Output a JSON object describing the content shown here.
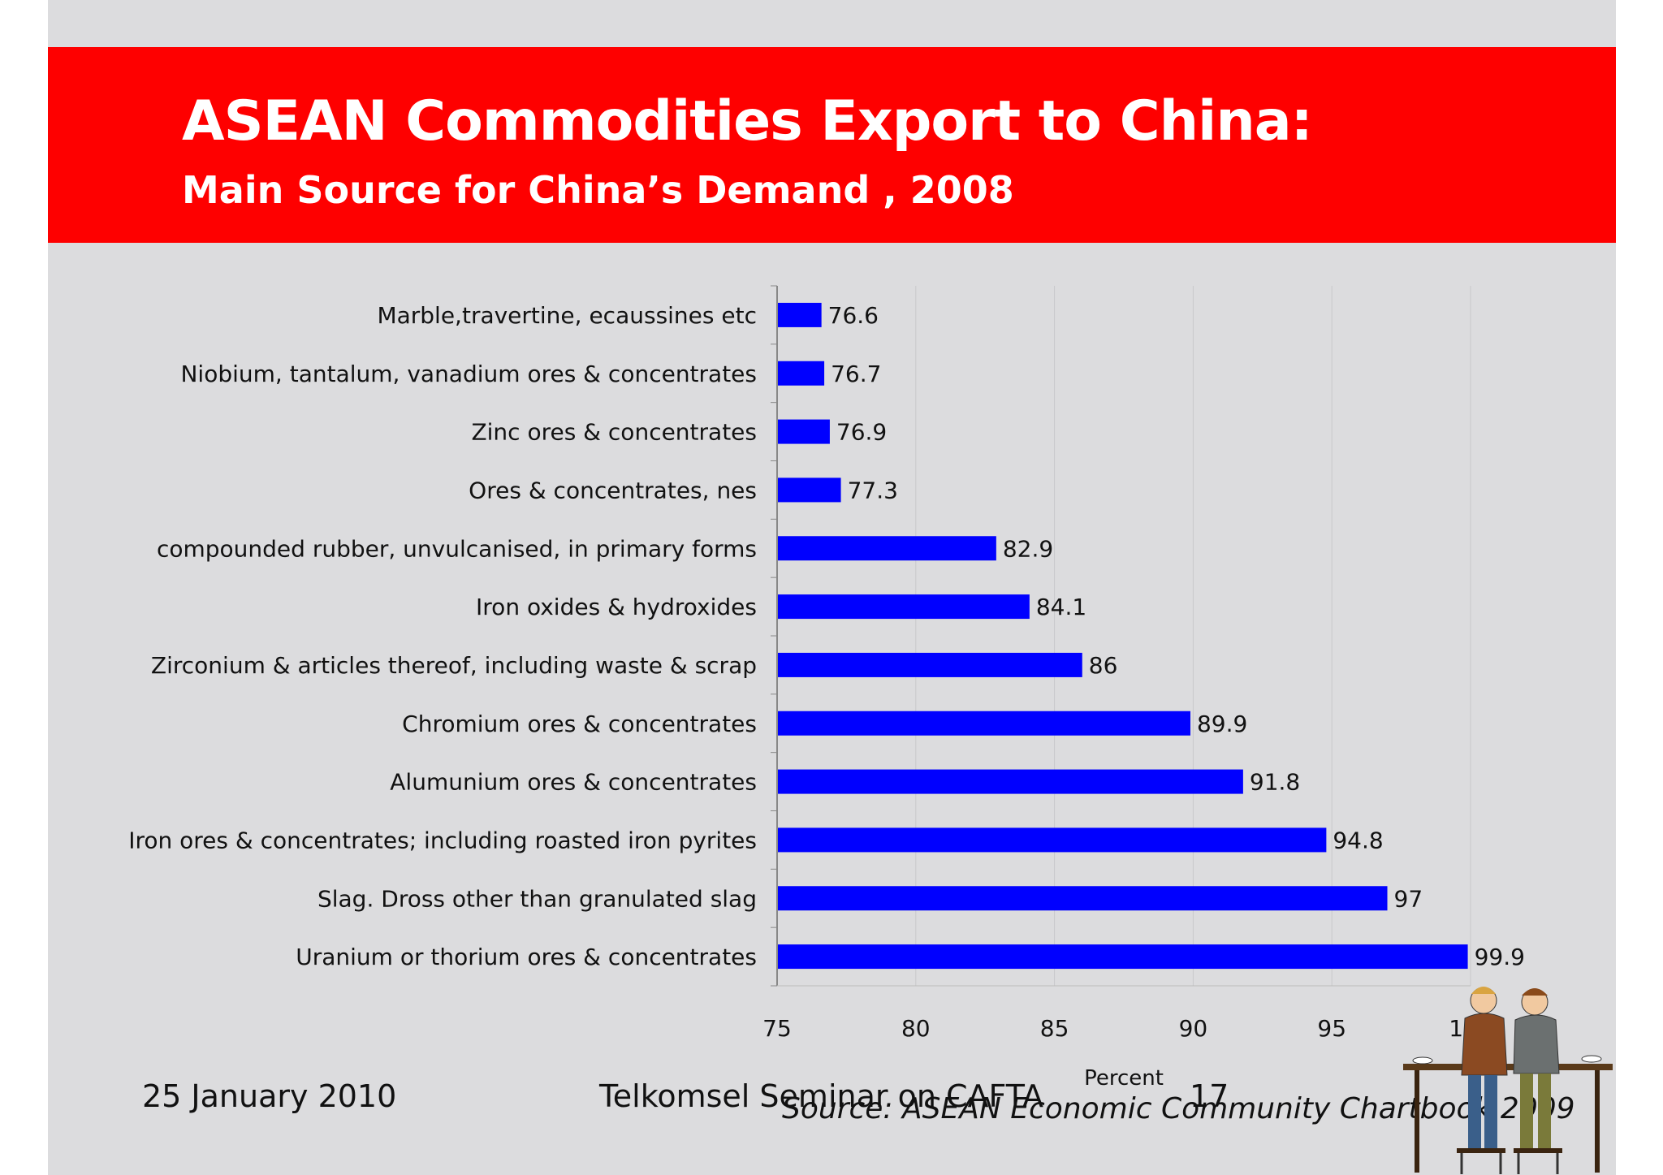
{
  "header": {
    "title": "ASEAN Commodities Export to China:",
    "subtitle": "Main Source for China’s Demand , 2008"
  },
  "colors": {
    "banner": "#fe0000",
    "bar": "#0000ff",
    "background": "#dcdcde"
  },
  "chart_data": {
    "type": "bar",
    "orientation": "horizontal",
    "xlabel": "Percent",
    "xlim": [
      75,
      100
    ],
    "xticks": [
      "75",
      "80",
      "85",
      "90",
      "95",
      "100"
    ],
    "grid": true,
    "categories": [
      "Marble,travertine, ecaussines etc",
      "Niobium, tantalum, vanadium ores & concentrates",
      "Zinc ores & concentrates",
      "Ores & concentrates, nes",
      "compounded rubber, unvulcanised, in primary forms",
      "Iron oxides & hydroxides",
      "Zirconium & articles thereof, including waste & scrap",
      "Chromium ores & concentrates",
      "Alumunium ores & concentrates",
      "Iron ores & concentrates; including roasted iron pyrites",
      "Slag. Dross other than granulated slag",
      "Uranium or thorium ores & concentrates"
    ],
    "values": [
      76.6,
      76.7,
      76.9,
      77.3,
      82.9,
      84.1,
      86,
      89.9,
      91.8,
      94.8,
      97,
      99.9
    ],
    "value_labels": [
      "76.6",
      "76.7",
      "76.9",
      "77.3",
      "82.9",
      "84.1",
      "86",
      "89.9",
      "91.8",
      "94.8",
      "97",
      "99.9"
    ]
  },
  "footer": {
    "date": "25 January 2010",
    "event": "Telkomsel Seminar on CAFTA",
    "page": "17",
    "source": "Source: ASEAN Economic Community Chartbook 2009"
  },
  "illustration": {
    "icon": "two-people-at-cafe-table-icon"
  }
}
